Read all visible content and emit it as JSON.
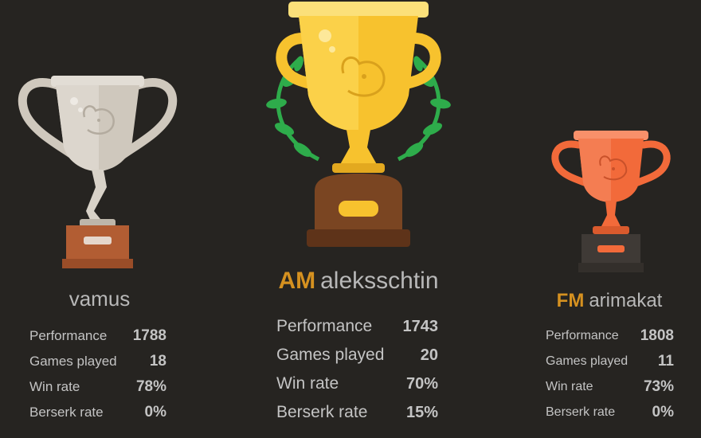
{
  "podium": {
    "first": {
      "title": "AM",
      "username": "aleksschtin",
      "trophy": "gold-trophy-icon",
      "stats": [
        {
          "label": "Performance",
          "value": "1743"
        },
        {
          "label": "Games played",
          "value": "20"
        },
        {
          "label": "Win rate",
          "value": "70%"
        },
        {
          "label": "Berserk rate",
          "value": "15%"
        }
      ]
    },
    "second": {
      "username": "vamus",
      "trophy": "silver-trophy-icon",
      "stats": [
        {
          "label": "Performance",
          "value": "1788"
        },
        {
          "label": "Games played",
          "value": "18"
        },
        {
          "label": "Win rate",
          "value": "78%"
        },
        {
          "label": "Berserk rate",
          "value": "0%"
        }
      ]
    },
    "third": {
      "title": "FM",
      "username": "arimakat",
      "trophy": "bronze-trophy-icon",
      "stats": [
        {
          "label": "Performance",
          "value": "1808"
        },
        {
          "label": "Games played",
          "value": "11"
        },
        {
          "label": "Win rate",
          "value": "73%"
        },
        {
          "label": "Berserk rate",
          "value": "0%"
        }
      ]
    }
  },
  "colors": {
    "background": "#262421",
    "title": "#d59120",
    "gold": "#f7c22e",
    "silver": "#cfc8bd",
    "bronze": "#f26a3a"
  }
}
